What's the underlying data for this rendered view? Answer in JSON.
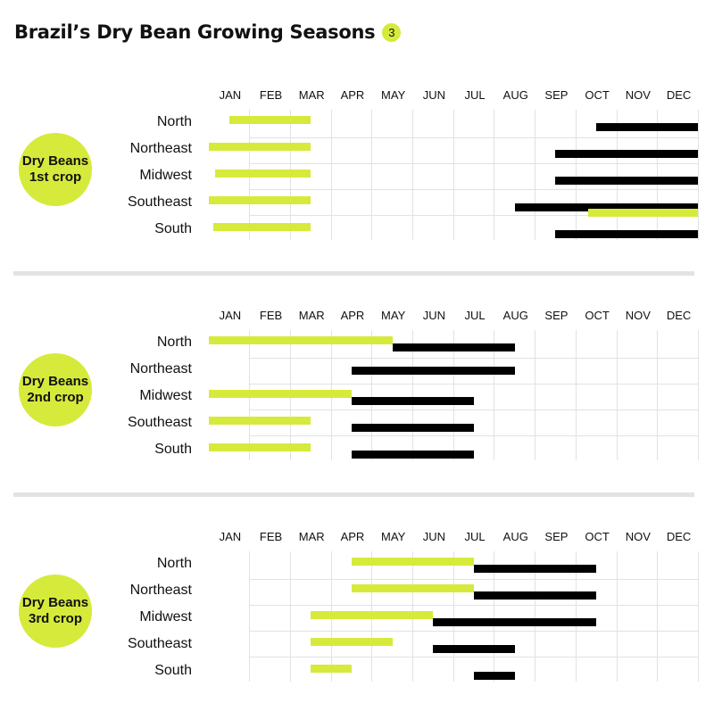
{
  "title": "Brazil’s Dry Bean Growing Seasons",
  "title_badge": "3",
  "colors": {
    "planting": "#d6ea3b",
    "harvest": "#000000",
    "grid": "#e2e2e2",
    "separator": "#e3e3e3"
  },
  "chart_data": {
    "type": "gantt",
    "months": [
      "JAN",
      "FEB",
      "MAR",
      "APR",
      "MAY",
      "JUN",
      "JUL",
      "AUG",
      "SEP",
      "OCT",
      "NOV",
      "DEC"
    ],
    "regions": [
      "North",
      "Northeast",
      "Midwest",
      "Southeast",
      "South"
    ],
    "value_unit": "month index (0 = start of January, 12 = end of December)",
    "series": [
      {
        "kind": "planting",
        "color": "#d6ea3b"
      },
      {
        "kind": "harvest",
        "color": "#000000"
      }
    ],
    "crops": [
      {
        "label": [
          "Dry Beans",
          "1st crop"
        ],
        "rows": [
          {
            "region": "North",
            "planting": [
              [
                0.5,
                2.5
              ]
            ],
            "harvest": [
              [
                9.5,
                12
              ]
            ]
          },
          {
            "region": "Northeast",
            "planting": [
              [
                0,
                2.5
              ]
            ],
            "harvest": [
              [
                8.5,
                12
              ]
            ]
          },
          {
            "region": "Midwest",
            "planting": [
              [
                0.15,
                2.5
              ]
            ],
            "harvest": [
              [
                8.5,
                12
              ]
            ]
          },
          {
            "region": "Southeast",
            "planting": [
              [
                0,
                2.5
              ],
              [
                9.3,
                12
              ]
            ],
            "harvest": [
              [
                7.5,
                12
              ]
            ]
          },
          {
            "region": "South",
            "planting": [
              [
                0.1,
                2.5
              ]
            ],
            "harvest": [
              [
                8.5,
                12
              ]
            ]
          }
        ]
      },
      {
        "label": [
          "Dry Beans",
          "2nd crop"
        ],
        "rows": [
          {
            "region": "North",
            "planting": [
              [
                0,
                4.5
              ]
            ],
            "harvest": [
              [
                4.5,
                7.5
              ]
            ]
          },
          {
            "region": "Northeast",
            "planting": [],
            "harvest": [
              [
                3.5,
                7.5
              ]
            ]
          },
          {
            "region": "Midwest",
            "planting": [
              [
                0,
                3.5
              ]
            ],
            "harvest": [
              [
                3.5,
                6.5
              ]
            ]
          },
          {
            "region": "Southeast",
            "planting": [
              [
                0,
                2.5
              ]
            ],
            "harvest": [
              [
                3.5,
                6.5
              ]
            ]
          },
          {
            "region": "South",
            "planting": [
              [
                0,
                2.5
              ]
            ],
            "harvest": [
              [
                3.5,
                6.5
              ]
            ]
          }
        ]
      },
      {
        "label": [
          "Dry Beans",
          "3rd crop"
        ],
        "rows": [
          {
            "region": "North",
            "planting": [
              [
                3.5,
                6.5
              ]
            ],
            "harvest": [
              [
                6.5,
                9.5
              ]
            ]
          },
          {
            "region": "Northeast",
            "planting": [
              [
                3.5,
                6.5
              ]
            ],
            "harvest": [
              [
                6.5,
                9.5
              ]
            ]
          },
          {
            "region": "Midwest",
            "planting": [
              [
                2.5,
                5.5
              ]
            ],
            "harvest": [
              [
                5.5,
                9.5
              ]
            ]
          },
          {
            "region": "Southeast",
            "planting": [
              [
                2.5,
                4.5
              ]
            ],
            "harvest": [
              [
                5.5,
                7.5
              ]
            ]
          },
          {
            "region": "South",
            "planting": [
              [
                2.5,
                3.5
              ]
            ],
            "harvest": [
              [
                6.5,
                7.5
              ]
            ]
          }
        ]
      }
    ]
  }
}
